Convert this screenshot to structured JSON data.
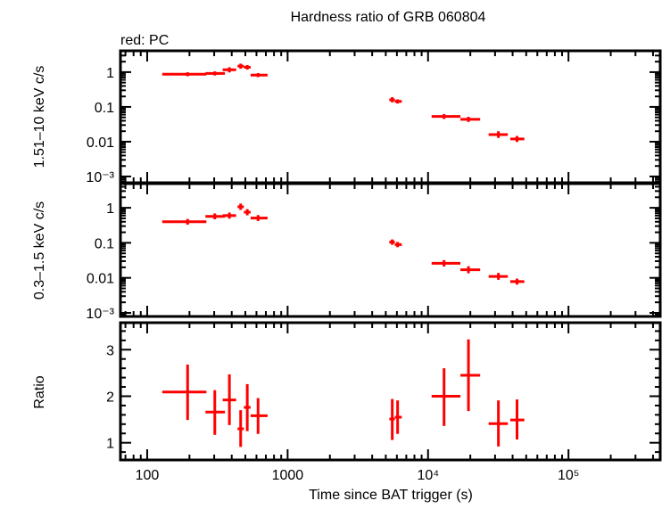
{
  "chart_data": [
    {
      "type": "scatter",
      "title": "Hardness ratio of GRB 060804",
      "annotation": "red: PC",
      "ylabel": "1.51–10 keV c/s",
      "yscale": "log",
      "ylim": [
        0.00066,
        4.1
      ],
      "yticks": [
        "1",
        "0.1",
        "0.01",
        "10⁻³"
      ],
      "color": "#ff0000",
      "points": [
        {
          "x": 194,
          "xlo": 128,
          "xhi": 264,
          "y": 0.87,
          "ylo": 0.76,
          "yhi": 0.99
        },
        {
          "x": 303,
          "xlo": 260,
          "xhi": 358,
          "y": 0.92,
          "ylo": 0.8,
          "yhi": 1.05
        },
        {
          "x": 385,
          "xlo": 345,
          "xhi": 430,
          "y": 1.17,
          "ylo": 0.98,
          "yhi": 1.38
        },
        {
          "x": 463,
          "xlo": 440,
          "xhi": 488,
          "y": 1.49,
          "ylo": 1.25,
          "yhi": 1.75
        },
        {
          "x": 516,
          "xlo": 488,
          "xhi": 545,
          "y": 1.38,
          "ylo": 1.18,
          "yhi": 1.6
        },
        {
          "x": 616,
          "xlo": 545,
          "xhi": 720,
          "y": 0.82,
          "ylo": 0.72,
          "yhi": 0.94
        },
        {
          "x": 5560,
          "xlo": 5300,
          "xhi": 5800,
          "y": 0.16,
          "ylo": 0.135,
          "yhi": 0.19
        },
        {
          "x": 6070,
          "xlo": 5800,
          "xhi": 6500,
          "y": 0.144,
          "ylo": 0.125,
          "yhi": 0.165
        },
        {
          "x": 13000,
          "xlo": 10600,
          "xhi": 17000,
          "y": 0.053,
          "ylo": 0.045,
          "yhi": 0.062
        },
        {
          "x": 19400,
          "xlo": 17000,
          "xhi": 23500,
          "y": 0.044,
          "ylo": 0.037,
          "yhi": 0.052
        },
        {
          "x": 31700,
          "xlo": 27000,
          "xhi": 37000,
          "y": 0.016,
          "ylo": 0.0128,
          "yhi": 0.02
        },
        {
          "x": 43000,
          "xlo": 38500,
          "xhi": 48500,
          "y": 0.012,
          "ylo": 0.0098,
          "yhi": 0.0146
        }
      ]
    },
    {
      "type": "scatter",
      "ylabel": "0.3–1.5 keV c/s",
      "yscale": "log",
      "ylim": [
        0.00079,
        4.9
      ],
      "yticks": [
        "1",
        "0.1",
        "0.01",
        "10⁻³"
      ],
      "color": "#ff0000",
      "points": [
        {
          "x": 194,
          "xlo": 128,
          "xhi": 264,
          "y": 0.4,
          "ylo": 0.33,
          "yhi": 0.48
        },
        {
          "x": 303,
          "xlo": 260,
          "xhi": 358,
          "y": 0.57,
          "ylo": 0.47,
          "yhi": 0.69
        },
        {
          "x": 385,
          "xlo": 345,
          "xhi": 430,
          "y": 0.6,
          "ylo": 0.49,
          "yhi": 0.73
        },
        {
          "x": 463,
          "xlo": 440,
          "xhi": 488,
          "y": 1.07,
          "ylo": 0.87,
          "yhi": 1.32
        },
        {
          "x": 516,
          "xlo": 488,
          "xhi": 545,
          "y": 0.75,
          "ylo": 0.61,
          "yhi": 0.92
        },
        {
          "x": 616,
          "xlo": 545,
          "xhi": 720,
          "y": 0.51,
          "ylo": 0.42,
          "yhi": 0.62
        },
        {
          "x": 5560,
          "xlo": 5300,
          "xhi": 5800,
          "y": 0.105,
          "ylo": 0.088,
          "yhi": 0.125
        },
        {
          "x": 6070,
          "xlo": 5800,
          "xhi": 6500,
          "y": 0.089,
          "ylo": 0.075,
          "yhi": 0.106
        },
        {
          "x": 13000,
          "xlo": 10600,
          "xhi": 17000,
          "y": 0.026,
          "ylo": 0.021,
          "yhi": 0.032
        },
        {
          "x": 19400,
          "xlo": 17000,
          "xhi": 23500,
          "y": 0.017,
          "ylo": 0.0135,
          "yhi": 0.0215
        },
        {
          "x": 31700,
          "xlo": 27000,
          "xhi": 37000,
          "y": 0.011,
          "ylo": 0.0088,
          "yhi": 0.0138
        },
        {
          "x": 43000,
          "xlo": 38500,
          "xhi": 48500,
          "y": 0.0078,
          "ylo": 0.0064,
          "yhi": 0.0095
        }
      ]
    },
    {
      "type": "scatter",
      "ylabel": "Ratio",
      "yscale": "linear",
      "ylim": [
        0.63,
        3.58
      ],
      "yticks": [
        "1",
        "2",
        "3"
      ],
      "xlabel": "Time since BAT trigger (s)",
      "xscale": "log",
      "xlim": [
        64.5,
        450000
      ],
      "xticks": [
        "100",
        "1000",
        "10⁴",
        "10⁵"
      ],
      "color": "#ff0000",
      "points": [
        {
          "x": 194,
          "xlo": 128,
          "xhi": 264,
          "y": 2.09,
          "ylo": 1.49,
          "yhi": 2.68
        },
        {
          "x": 303,
          "xlo": 260,
          "xhi": 358,
          "y": 1.66,
          "ylo": 1.17,
          "yhi": 2.13
        },
        {
          "x": 385,
          "xlo": 345,
          "xhi": 430,
          "y": 1.92,
          "ylo": 1.38,
          "yhi": 2.47
        },
        {
          "x": 463,
          "xlo": 440,
          "xhi": 488,
          "y": 1.3,
          "ylo": 0.91,
          "yhi": 1.7
        },
        {
          "x": 516,
          "xlo": 488,
          "xhi": 545,
          "y": 1.76,
          "ylo": 1.25,
          "yhi": 2.26
        },
        {
          "x": 616,
          "xlo": 545,
          "xhi": 720,
          "y": 1.58,
          "ylo": 1.19,
          "yhi": 1.96
        },
        {
          "x": 5560,
          "xlo": 5300,
          "xhi": 5800,
          "y": 1.51,
          "ylo": 1.06,
          "yhi": 1.94
        },
        {
          "x": 6070,
          "xlo": 5800,
          "xhi": 6500,
          "y": 1.55,
          "ylo": 1.19,
          "yhi": 1.91
        },
        {
          "x": 13000,
          "xlo": 10600,
          "xhi": 17000,
          "y": 2.0,
          "ylo": 1.36,
          "yhi": 2.6
        },
        {
          "x": 19400,
          "xlo": 17000,
          "xhi": 23500,
          "y": 2.45,
          "ylo": 1.68,
          "yhi": 3.22
        },
        {
          "x": 31700,
          "xlo": 27000,
          "xhi": 37000,
          "y": 1.41,
          "ylo": 0.92,
          "yhi": 1.91
        },
        {
          "x": 43000,
          "xlo": 38500,
          "xhi": 48500,
          "y": 1.49,
          "ylo": 1.07,
          "yhi": 1.93
        }
      ]
    }
  ]
}
